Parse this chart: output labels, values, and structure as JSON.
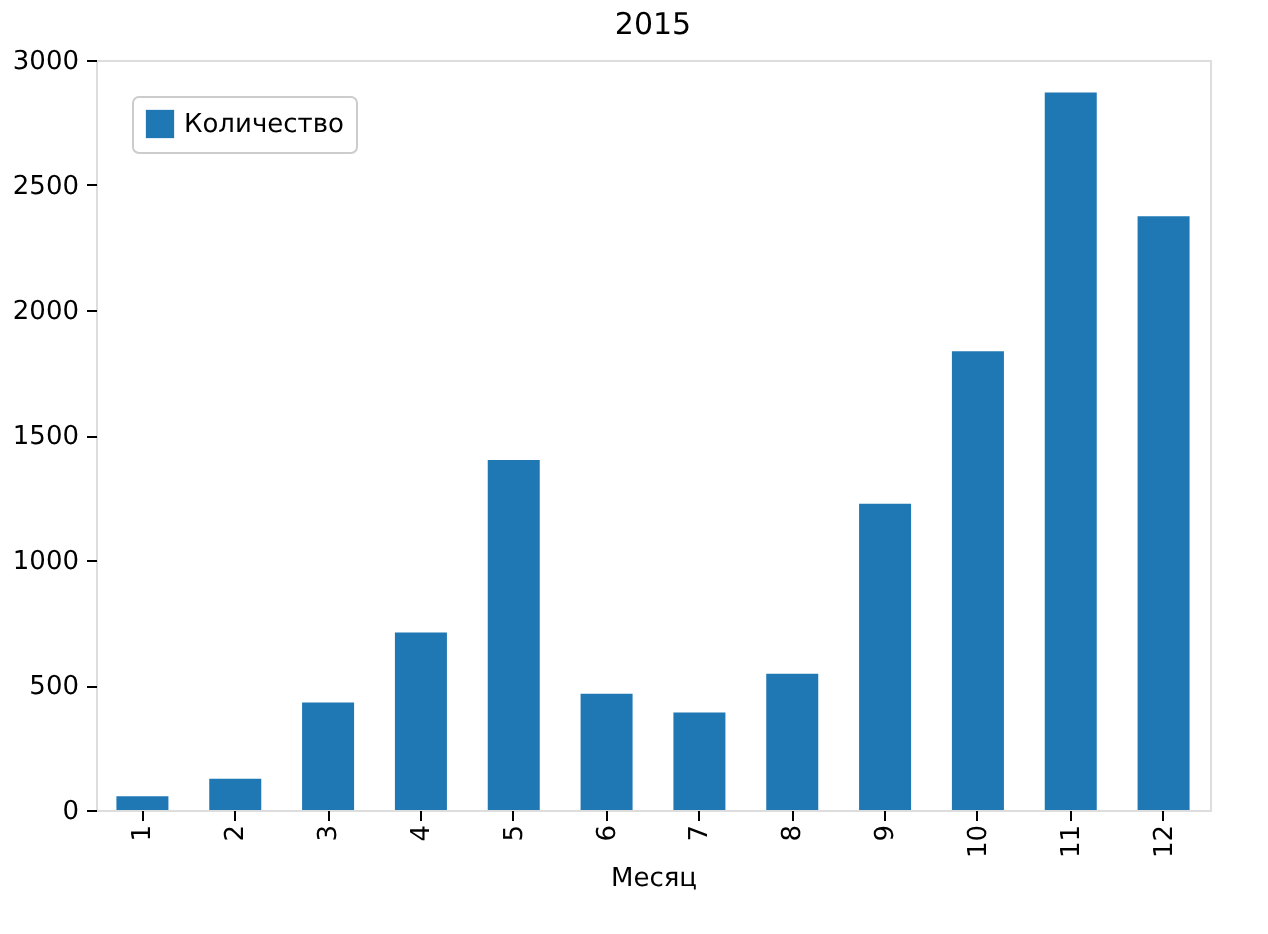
{
  "chart_data": {
    "type": "bar",
    "title": "2015",
    "xlabel": "Месяц",
    "categories": [
      "1",
      "2",
      "3",
      "4",
      "5",
      "6",
      "7",
      "8",
      "9",
      "10",
      "11",
      "12"
    ],
    "series": [
      {
        "name": "Количество",
        "color": "#1f77b4",
        "values": [
          55,
          125,
          430,
          710,
          1400,
          465,
          390,
          545,
          1225,
          1835,
          2870,
          2375
        ]
      }
    ],
    "ylim": [
      0,
      3000
    ],
    "yticks": [
      0,
      500,
      1000,
      1500,
      2000,
      2500,
      3000
    ],
    "grid": false,
    "legend": "top left"
  }
}
